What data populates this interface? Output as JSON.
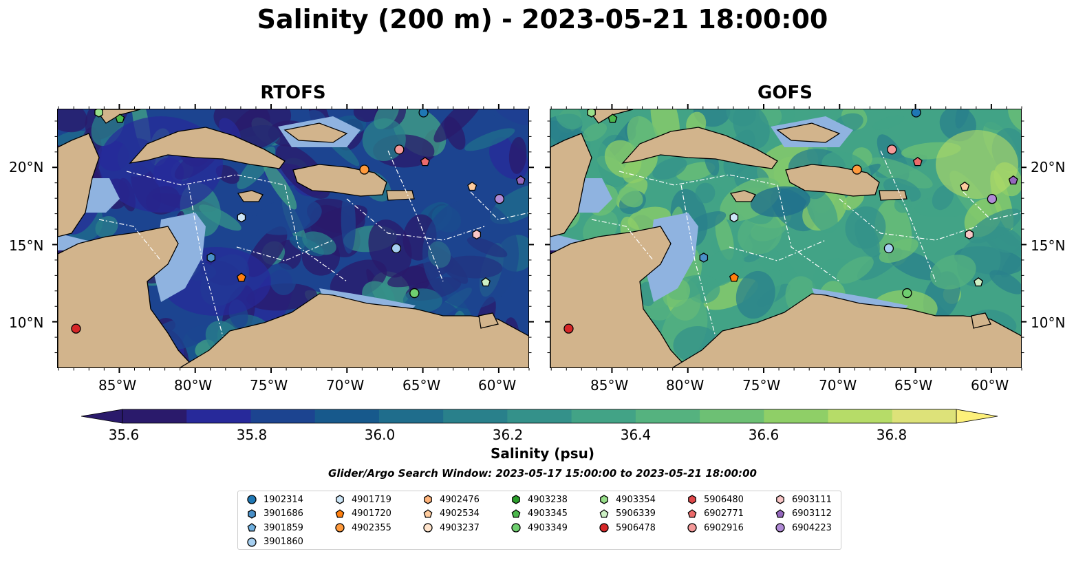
{
  "title": "Salinity (200 m) - 2023-05-21 18:00:00",
  "panels": [
    {
      "title": "RTOFS",
      "palette_bias": 0.18
    },
    {
      "title": "GOFS",
      "palette_bias": 0.62
    }
  ],
  "x_ticks": [
    "85°W",
    "80°W",
    "75°W",
    "70°W",
    "65°W",
    "60°W"
  ],
  "y_ticks": [
    "20°N",
    "15°N",
    "10°N"
  ],
  "colorbar": {
    "label": "Salinity (psu)",
    "ticks": [
      "35.6",
      "35.8",
      "36.0",
      "36.2",
      "36.4",
      "36.6",
      "36.8"
    ],
    "colors": [
      "#2a1a6b",
      "#27299a",
      "#1c4490",
      "#17598c",
      "#1f6d8c",
      "#29808b",
      "#34918a",
      "#42a386",
      "#55b27f",
      "#6dc074",
      "#8fcf67",
      "#b6dc68",
      "#dde279"
    ],
    "extend_low": "#2a1a6b",
    "extend_high": "#fdf07a"
  },
  "search_window": "Glider/Argo Search Window: 2023-05-17 15:00:00 to 2023-05-21 18:00:00",
  "colors": {
    "land": "#d2b48c",
    "shelf": "#8fb3e0",
    "deep_pacific": "#2a1a6b"
  },
  "floats": [
    {
      "id": "1902314",
      "marker": "circle",
      "color": "#1f77b4"
    },
    {
      "id": "3901686",
      "marker": "hexagon",
      "color": "#4a90c8"
    },
    {
      "id": "3901859",
      "marker": "pentagon",
      "color": "#6fb0e0"
    },
    {
      "id": "3901860",
      "marker": "circle",
      "color": "#a6cff0"
    },
    {
      "id": "4901719",
      "marker": "hexagon",
      "color": "#cde6f7"
    },
    {
      "id": "4901720",
      "marker": "pentagon",
      "color": "#ff7f0e"
    },
    {
      "id": "4902355",
      "marker": "circle",
      "color": "#ff9a3c"
    },
    {
      "id": "4902476",
      "marker": "hexagon",
      "color": "#ffb37a"
    },
    {
      "id": "4902534",
      "marker": "pentagon",
      "color": "#ffcc9e"
    },
    {
      "id": "4903237",
      "marker": "circle",
      "color": "#ffe4cc"
    },
    {
      "id": "4903238",
      "marker": "hexagon",
      "color": "#2ca02c"
    },
    {
      "id": "4903345",
      "marker": "pentagon",
      "color": "#4cb84c"
    },
    {
      "id": "4903349",
      "marker": "circle",
      "color": "#6fcf6f"
    },
    {
      "id": "4903354",
      "marker": "hexagon",
      "color": "#98df8a"
    },
    {
      "id": "5906339",
      "marker": "pentagon",
      "color": "#cdf0c4"
    },
    {
      "id": "5906478",
      "marker": "circle",
      "color": "#d62728"
    },
    {
      "id": "5906480",
      "marker": "hexagon",
      "color": "#e0484a"
    },
    {
      "id": "6902771",
      "marker": "pentagon",
      "color": "#ec6b6b"
    },
    {
      "id": "6902916",
      "marker": "circle",
      "color": "#f59a9a"
    },
    {
      "id": "6903111",
      "marker": "hexagon",
      "color": "#f9c6c6"
    },
    {
      "id": "6903112",
      "marker": "pentagon",
      "color": "#9467bd"
    },
    {
      "id": "6904223",
      "marker": "circle",
      "color": "#b08ad6"
    }
  ],
  "float_positions": [
    {
      "id": "1902314",
      "lon": -65.0,
      "lat": 23.6
    },
    {
      "id": "4903354",
      "lon": -86.4,
      "lat": 23.6
    },
    {
      "id": "4903345",
      "lon": -85.0,
      "lat": 23.2
    },
    {
      "id": "6902916",
      "lon": -66.6,
      "lat": 21.2
    },
    {
      "id": "6902771",
      "lon": -64.9,
      "lat": 20.4
    },
    {
      "id": "4902355",
      "lon": -68.9,
      "lat": 19.9
    },
    {
      "id": "4902534",
      "lon": -61.8,
      "lat": 18.8
    },
    {
      "id": "6903112",
      "lon": -58.6,
      "lat": 19.2
    },
    {
      "id": "6904223",
      "lon": -60.0,
      "lat": 18.0
    },
    {
      "id": "4901719",
      "lon": -77.0,
      "lat": 16.8
    },
    {
      "id": "6903111",
      "lon": -61.5,
      "lat": 15.7
    },
    {
      "id": "3901860",
      "lon": -66.8,
      "lat": 14.8
    },
    {
      "id": "3901686",
      "lon": -79.0,
      "lat": 14.2
    },
    {
      "id": "4901720",
      "lon": -77.0,
      "lat": 12.9
    },
    {
      "id": "5906339",
      "lon": -60.9,
      "lat": 12.6
    },
    {
      "id": "4903349",
      "lon": -65.6,
      "lat": 11.9
    },
    {
      "id": "5906478",
      "lon": -87.9,
      "lat": 9.6
    }
  ]
}
